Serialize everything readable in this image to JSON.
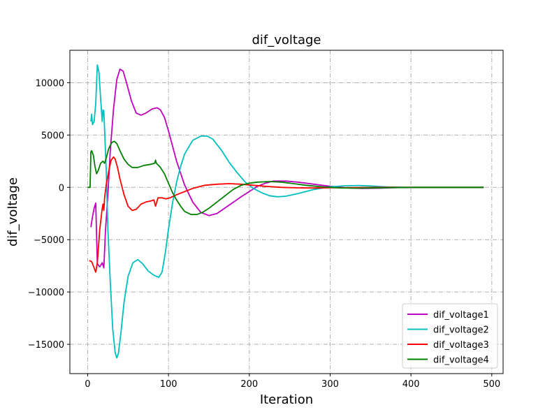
{
  "chart_data": {
    "type": "line",
    "title": "dif_voltage",
    "xlabel": "Iteration",
    "ylabel": "dif_voltage",
    "xlim": [
      -22,
      514
    ],
    "ylim": [
      -17800,
      13100
    ],
    "xticks": [
      0,
      100,
      200,
      300,
      400,
      500
    ],
    "yticks": [
      -15000,
      -10000,
      -5000,
      0,
      5000,
      10000
    ],
    "ytick_labels": [
      "−15000",
      "−10000",
      "−5000",
      "0",
      "5000",
      "10000"
    ],
    "grid": true,
    "legend_position": "lower-right",
    "series": [
      {
        "name": "dif_voltage1",
        "color": "#bf00bf",
        "points": [
          [
            4,
            -3800
          ],
          [
            6,
            -2800
          ],
          [
            8,
            -2000
          ],
          [
            10,
            -1500
          ],
          [
            12,
            -7300
          ],
          [
            15,
            -7600
          ],
          [
            18,
            -7200
          ],
          [
            20,
            -7700
          ],
          [
            22,
            -4200
          ],
          [
            25,
            -700
          ],
          [
            28,
            3500
          ],
          [
            32,
            7500
          ],
          [
            36,
            10300
          ],
          [
            40,
            11300
          ],
          [
            44,
            11100
          ],
          [
            48,
            10000
          ],
          [
            54,
            8300
          ],
          [
            60,
            7100
          ],
          [
            66,
            6900
          ],
          [
            72,
            7100
          ],
          [
            80,
            7500
          ],
          [
            86,
            7600
          ],
          [
            90,
            7400
          ],
          [
            95,
            6700
          ],
          [
            100,
            5400
          ],
          [
            110,
            2500
          ],
          [
            120,
            200
          ],
          [
            130,
            -1400
          ],
          [
            140,
            -2400
          ],
          [
            150,
            -2700
          ],
          [
            160,
            -2500
          ],
          [
            175,
            -1700
          ],
          [
            190,
            -900
          ],
          [
            200,
            -400
          ],
          [
            210,
            100
          ],
          [
            220,
            400
          ],
          [
            230,
            600
          ],
          [
            245,
            600
          ],
          [
            260,
            500
          ],
          [
            280,
            300
          ],
          [
            300,
            100
          ],
          [
            320,
            -50
          ],
          [
            340,
            -100
          ],
          [
            360,
            -80
          ],
          [
            380,
            -30
          ],
          [
            400,
            0
          ],
          [
            490,
            0
          ]
        ]
      },
      {
        "name": "dif_voltage2",
        "color": "#00bfbf",
        "points": [
          [
            4,
            6300
          ],
          [
            5,
            7000
          ],
          [
            6,
            6000
          ],
          [
            8,
            6300
          ],
          [
            10,
            8000
          ],
          [
            12,
            11700
          ],
          [
            14,
            11000
          ],
          [
            16,
            8500
          ],
          [
            18,
            6300
          ],
          [
            19,
            7400
          ],
          [
            20,
            7300
          ],
          [
            21,
            5500
          ],
          [
            23,
            1500
          ],
          [
            25,
            -4000
          ],
          [
            28,
            -9000
          ],
          [
            31,
            -13500
          ],
          [
            34,
            -15800
          ],
          [
            36,
            -16300
          ],
          [
            38,
            -15900
          ],
          [
            41,
            -14000
          ],
          [
            45,
            -11000
          ],
          [
            50,
            -8500
          ],
          [
            56,
            -7200
          ],
          [
            62,
            -6900
          ],
          [
            68,
            -7300
          ],
          [
            75,
            -8000
          ],
          [
            82,
            -8400
          ],
          [
            88,
            -8600
          ],
          [
            92,
            -8100
          ],
          [
            96,
            -6300
          ],
          [
            100,
            -4000
          ],
          [
            105,
            -1500
          ],
          [
            110,
            500
          ],
          [
            115,
            2000
          ],
          [
            120,
            3200
          ],
          [
            130,
            4500
          ],
          [
            140,
            4900
          ],
          [
            148,
            4900
          ],
          [
            155,
            4600
          ],
          [
            165,
            3600
          ],
          [
            175,
            2400
          ],
          [
            185,
            1400
          ],
          [
            195,
            500
          ],
          [
            205,
            -100
          ],
          [
            215,
            -500
          ],
          [
            225,
            -800
          ],
          [
            235,
            -900
          ],
          [
            245,
            -850
          ],
          [
            260,
            -600
          ],
          [
            280,
            -200
          ],
          [
            300,
            50
          ],
          [
            320,
            150
          ],
          [
            335,
            170
          ],
          [
            350,
            130
          ],
          [
            370,
            40
          ],
          [
            400,
            0
          ],
          [
            490,
            0
          ]
        ]
      },
      {
        "name": "dif_voltage3",
        "color": "#ff0000",
        "points": [
          [
            2,
            -7000
          ],
          [
            5,
            -7100
          ],
          [
            8,
            -7700
          ],
          [
            10,
            -8100
          ],
          [
            12,
            -7200
          ],
          [
            15,
            -4000
          ],
          [
            18,
            -2000
          ],
          [
            19,
            -1600
          ],
          [
            20,
            -2200
          ],
          [
            21,
            -1000
          ],
          [
            23,
            300
          ],
          [
            26,
            1500
          ],
          [
            29,
            2600
          ],
          [
            32,
            2900
          ],
          [
            34,
            2700
          ],
          [
            37,
            1900
          ],
          [
            40,
            800
          ],
          [
            45,
            -700
          ],
          [
            50,
            -1800
          ],
          [
            55,
            -2200
          ],
          [
            60,
            -2100
          ],
          [
            66,
            -1600
          ],
          [
            72,
            -1400
          ],
          [
            78,
            -1300
          ],
          [
            82,
            -1200
          ],
          [
            84,
            -1800
          ],
          [
            87,
            -1000
          ],
          [
            92,
            -1000
          ],
          [
            97,
            -1100
          ],
          [
            102,
            -1000
          ],
          [
            110,
            -700
          ],
          [
            120,
            -400
          ],
          [
            130,
            -100
          ],
          [
            145,
            200
          ],
          [
            160,
            300
          ],
          [
            175,
            350
          ],
          [
            190,
            300
          ],
          [
            205,
            200
          ],
          [
            220,
            100
          ],
          [
            240,
            0
          ],
          [
            260,
            -50
          ],
          [
            280,
            -60
          ],
          [
            300,
            -40
          ],
          [
            330,
            -20
          ],
          [
            360,
            0
          ],
          [
            490,
            0
          ]
        ]
      },
      {
        "name": "dif_voltage4",
        "color": "#008000",
        "points": [
          [
            0,
            0
          ],
          [
            3,
            0
          ],
          [
            4,
            3400
          ],
          [
            5,
            3500
          ],
          [
            7,
            3100
          ],
          [
            9,
            2000
          ],
          [
            11,
            1300
          ],
          [
            13,
            1600
          ],
          [
            16,
            2300
          ],
          [
            19,
            2500
          ],
          [
            21,
            2300
          ],
          [
            23,
            2800
          ],
          [
            26,
            3700
          ],
          [
            30,
            4300
          ],
          [
            33,
            4400
          ],
          [
            36,
            4200
          ],
          [
            40,
            3500
          ],
          [
            45,
            2700
          ],
          [
            50,
            2200
          ],
          [
            55,
            1900
          ],
          [
            62,
            1900
          ],
          [
            70,
            2100
          ],
          [
            78,
            2200
          ],
          [
            83,
            2300
          ],
          [
            84,
            2600
          ],
          [
            85,
            2300
          ],
          [
            90,
            1900
          ],
          [
            95,
            1300
          ],
          [
            100,
            400
          ],
          [
            105,
            -500
          ],
          [
            110,
            -1200
          ],
          [
            115,
            -1800
          ],
          [
            120,
            -2300
          ],
          [
            128,
            -2600
          ],
          [
            135,
            -2600
          ],
          [
            142,
            -2400
          ],
          [
            150,
            -2000
          ],
          [
            160,
            -1400
          ],
          [
            170,
            -800
          ],
          [
            180,
            -200
          ],
          [
            190,
            200
          ],
          [
            200,
            400
          ],
          [
            210,
            500
          ],
          [
            225,
            550
          ],
          [
            240,
            500
          ],
          [
            255,
            350
          ],
          [
            270,
            200
          ],
          [
            290,
            50
          ],
          [
            310,
            -50
          ],
          [
            330,
            -80
          ],
          [
            350,
            -60
          ],
          [
            380,
            -20
          ],
          [
            410,
            0
          ],
          [
            490,
            0
          ]
        ]
      }
    ]
  }
}
